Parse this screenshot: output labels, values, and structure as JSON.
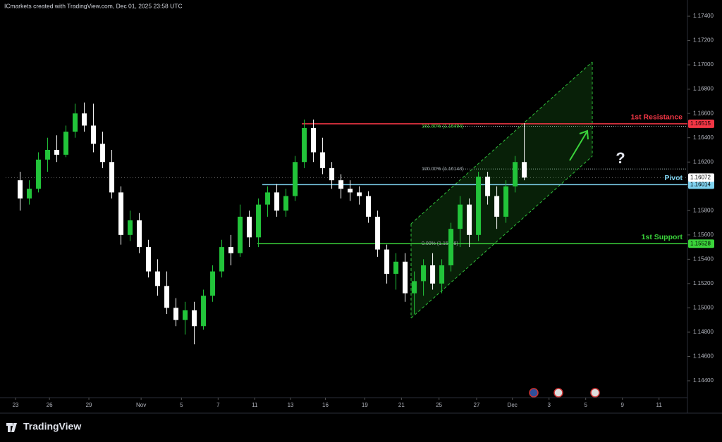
{
  "header": "ICmarkets created with TradingView.com, Dec 01, 2025 23:58 UTC",
  "footer": "TradingView",
  "chart_data": {
    "type": "candlestick",
    "up_color": "#22c43a",
    "down_color": "#ffffff",
    "ylim": [
      1.14261,
      1.17464
    ],
    "yticks": [
      {
        "value": 1.174,
        "label": "1.17400"
      },
      {
        "value": 1.172,
        "label": "1.17200"
      },
      {
        "value": 1.17,
        "label": "1.17000"
      },
      {
        "value": 1.168,
        "label": "1.16800"
      },
      {
        "value": 1.166,
        "label": "1.16600"
      },
      {
        "value": 1.164,
        "label": "1.16400"
      },
      {
        "value": 1.162,
        "label": "1.16200"
      },
      {
        "value": 1.16,
        "label": "1.16000"
      },
      {
        "value": 1.158,
        "label": "1.15800"
      },
      {
        "value": 1.156,
        "label": "1.15600"
      },
      {
        "value": 1.154,
        "label": "1.15400"
      },
      {
        "value": 1.152,
        "label": "1.15200"
      },
      {
        "value": 1.15,
        "label": "1.15000"
      },
      {
        "value": 1.148,
        "label": "1.14800"
      },
      {
        "value": 1.146,
        "label": "1.14600"
      },
      {
        "value": 1.144,
        "label": "1.14400"
      }
    ],
    "xlim": [
      -0.54,
      36.65
    ],
    "xticks": [
      {
        "value": 0,
        "label": "23"
      },
      {
        "value": 1.85,
        "label": "26"
      },
      {
        "value": 4.0,
        "label": "29"
      },
      {
        "value": 6.85,
        "label": "Nov"
      },
      {
        "value": 9.05,
        "label": "5"
      },
      {
        "value": 11.05,
        "label": "7"
      },
      {
        "value": 13.05,
        "label": "11"
      },
      {
        "value": 15.0,
        "label": "13"
      },
      {
        "value": 16.9,
        "label": "16"
      },
      {
        "value": 19.05,
        "label": "19"
      },
      {
        "value": 21.05,
        "label": "21"
      },
      {
        "value": 23.1,
        "label": "25"
      },
      {
        "value": 25.15,
        "label": "27"
      },
      {
        "value": 27.1,
        "label": "Dec"
      },
      {
        "value": 29.1,
        "label": "3"
      },
      {
        "value": 31.1,
        "label": "5"
      },
      {
        "value": 33.1,
        "label": "9"
      },
      {
        "value": 35.1,
        "label": "11"
      }
    ],
    "x": [
      0.25,
      0.75,
      1.25,
      1.75,
      2.25,
      2.75,
      3.25,
      3.75,
      4.25,
      4.75,
      5.25,
      5.75,
      6.25,
      6.75,
      7.25,
      7.75,
      8.25,
      8.75,
      9.25,
      9.75,
      10.25,
      10.75,
      11.25,
      11.75,
      12.25,
      12.75,
      13.25,
      13.75,
      14.25,
      14.75,
      15.25,
      15.75,
      16.25,
      16.75,
      17.25,
      17.75,
      18.25,
      18.75,
      19.25,
      19.75,
      20.25,
      20.75,
      21.25,
      21.75,
      22.25,
      22.75,
      23.25,
      23.75,
      24.25,
      24.75,
      25.25,
      25.75,
      26.25,
      26.75,
      27.25,
      27.75
    ],
    "open": [
      1.1605,
      1.159,
      1.1598,
      1.1622,
      1.163,
      1.1626,
      1.1645,
      1.166,
      1.165,
      1.1635,
      1.162,
      1.1595,
      1.156,
      1.1572,
      1.155,
      1.153,
      1.1518,
      1.15,
      1.149,
      1.1498,
      1.1485,
      1.151,
      1.153,
      1.155,
      1.1545,
      1.1575,
      1.1558,
      1.1585,
      1.1595,
      1.158,
      1.1592,
      1.162,
      1.1648,
      1.1628,
      1.1615,
      1.1605,
      1.1598,
      1.1595,
      1.1592,
      1.1575,
      1.1548,
      1.1528,
      1.1538,
      1.1512,
      1.1522,
      1.1535,
      1.152,
      1.1535,
      1.1565,
      1.1585,
      1.156,
      1.1608,
      1.1592,
      1.1575,
      1.16,
      1.162
    ],
    "high": [
      1.1612,
      1.1605,
      1.1628,
      1.164,
      1.1642,
      1.165,
      1.1668,
      1.1669,
      1.1668,
      1.1645,
      1.163,
      1.16,
      1.158,
      1.1578,
      1.1556,
      1.154,
      1.153,
      1.1508,
      1.1505,
      1.1505,
      1.1515,
      1.1535,
      1.1556,
      1.156,
      1.1585,
      1.158,
      1.159,
      1.16,
      1.1602,
      1.1598,
      1.1625,
      1.1655,
      1.1655,
      1.164,
      1.162,
      1.161,
      1.1605,
      1.16,
      1.1596,
      1.158,
      1.1552,
      1.1545,
      1.1545,
      1.153,
      1.154,
      1.1545,
      1.154,
      1.157,
      1.1592,
      1.159,
      1.1612,
      1.1612,
      1.16,
      1.1605,
      1.1625,
      1.1652
    ],
    "low": [
      1.158,
      1.1585,
      1.1595,
      1.1612,
      1.162,
      1.1624,
      1.164,
      1.1645,
      1.1628,
      1.1615,
      1.159,
      1.1552,
      1.1555,
      1.1545,
      1.1525,
      1.151,
      1.1495,
      1.1485,
      1.1478,
      1.147,
      1.1482,
      1.1505,
      1.1525,
      1.1535,
      1.1542,
      1.155,
      1.155,
      1.1575,
      1.1575,
      1.1575,
      1.1588,
      1.1615,
      1.162,
      1.161,
      1.1598,
      1.159,
      1.1588,
      1.1585,
      1.157,
      1.1542,
      1.152,
      1.1515,
      1.1505,
      1.1495,
      1.151,
      1.1515,
      1.1512,
      1.153,
      1.155,
      1.155,
      1.1555,
      1.1585,
      1.1565,
      1.157,
      1.1595,
      1.1605
    ],
    "close": [
      1.159,
      1.1598,
      1.1622,
      1.163,
      1.1626,
      1.1645,
      1.166,
      1.165,
      1.1635,
      1.162,
      1.1595,
      1.156,
      1.1572,
      1.155,
      1.153,
      1.1518,
      1.15,
      1.149,
      1.1498,
      1.1485,
      1.151,
      1.153,
      1.155,
      1.1545,
      1.1575,
      1.1558,
      1.1585,
      1.1595,
      1.158,
      1.1592,
      1.162,
      1.1648,
      1.1628,
      1.1615,
      1.1605,
      1.1598,
      1.1595,
      1.1592,
      1.1575,
      1.1548,
      1.1528,
      1.1538,
      1.1512,
      1.1522,
      1.1535,
      1.152,
      1.1535,
      1.1565,
      1.1585,
      1.156,
      1.1608,
      1.1592,
      1.1575,
      1.16,
      1.162,
      1.16072
    ],
    "levels": [
      {
        "name": "1st Resistance",
        "value": 1.16515,
        "label": "1.16515",
        "color": "#f23645"
      },
      {
        "name": "Pivot",
        "value": 1.16014,
        "label": "1.16014",
        "color": "#7fd3f0"
      },
      {
        "name": "1st Support",
        "value": 1.15528,
        "label": "1.15528",
        "color": "#3bd43b"
      }
    ],
    "current_price": {
      "value": 1.16072,
      "label": "1.16072"
    },
    "fib_levels": [
      {
        "label": "161.80% (1.16494)",
        "value": 1.16494
      },
      {
        "label": "100.00% (1.16143)",
        "value": 1.16143
      },
      {
        "label": "0.00% (1.15528)",
        "value": 1.15528
      }
    ],
    "annotation": "?"
  }
}
